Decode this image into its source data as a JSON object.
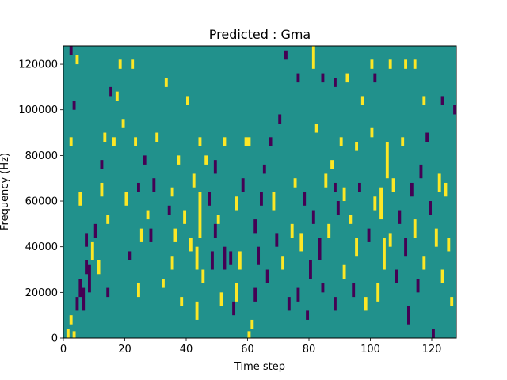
{
  "chart_data": {
    "type": "heatmap",
    "title": "Predicted : Gma",
    "xlabel": "Time step",
    "ylabel": "Frequency (Hz)",
    "xlim": [
      0,
      128
    ],
    "ylim": [
      0,
      128000
    ],
    "grid": false,
    "x_ticks": [
      0,
      20,
      40,
      60,
      80,
      100,
      120
    ],
    "x_tick_labels": [
      "0",
      "20",
      "40",
      "60",
      "80",
      "100",
      "120"
    ],
    "y_ticks": [
      0,
      20000,
      40000,
      60000,
      80000,
      100000,
      120000
    ],
    "y_tick_labels": [
      "0",
      "20000",
      "40000",
      "60000",
      "80000",
      "100000",
      "120000"
    ],
    "time_bins": 128,
    "frequency_bins": 128,
    "frequency_bin_hz": 1000,
    "colors": {
      "background": "#21918c",
      "high": "#fde725",
      "low": "#440154"
    },
    "cells": [
      {
        "t": 1,
        "f": 0,
        "h": 4000,
        "level": "high"
      },
      {
        "t": 2,
        "f": 6000,
        "h": 4000,
        "level": "high"
      },
      {
        "t": 3,
        "f": 0,
        "h": 3000,
        "level": "high"
      },
      {
        "t": 4,
        "f": 12000,
        "h": 6000,
        "level": "low"
      },
      {
        "t": 5,
        "f": 18000,
        "h": 8000,
        "level": "low"
      },
      {
        "t": 6,
        "f": 12000,
        "h": 10000,
        "level": "low"
      },
      {
        "t": 7,
        "f": 28000,
        "h": 6000,
        "level": "low"
      },
      {
        "t": 8,
        "f": 20000,
        "h": 12000,
        "level": "low"
      },
      {
        "t": 2,
        "f": 124000,
        "h": 4000,
        "level": "low"
      },
      {
        "t": 4,
        "f": 120000,
        "h": 4000,
        "level": "high"
      },
      {
        "t": 2,
        "f": 84000,
        "h": 4000,
        "level": "high"
      },
      {
        "t": 3,
        "f": 100000,
        "h": 4000,
        "level": "low"
      },
      {
        "t": 5,
        "f": 58000,
        "h": 6000,
        "level": "high"
      },
      {
        "t": 7,
        "f": 40000,
        "h": 6000,
        "level": "low"
      },
      {
        "t": 9,
        "f": 34000,
        "h": 8000,
        "level": "high"
      },
      {
        "t": 10,
        "f": 44000,
        "h": 6000,
        "level": "low"
      },
      {
        "t": 11,
        "f": 28000,
        "h": 6000,
        "level": "high"
      },
      {
        "t": 12,
        "f": 62000,
        "h": 6000,
        "level": "high"
      },
      {
        "t": 12,
        "f": 74000,
        "h": 4000,
        "level": "low"
      },
      {
        "t": 13,
        "f": 86000,
        "h": 4000,
        "level": "high"
      },
      {
        "t": 14,
        "f": 18000,
        "h": 4000,
        "level": "low"
      },
      {
        "t": 14,
        "f": 50000,
        "h": 4000,
        "level": "high"
      },
      {
        "t": 15,
        "f": 106000,
        "h": 4000,
        "level": "low"
      },
      {
        "t": 16,
        "f": 84000,
        "h": 4000,
        "level": "high"
      },
      {
        "t": 17,
        "f": 104000,
        "h": 4000,
        "level": "high"
      },
      {
        "t": 18,
        "f": 118000,
        "h": 4000,
        "level": "high"
      },
      {
        "t": 19,
        "f": 92000,
        "h": 4000,
        "level": "high"
      },
      {
        "t": 20,
        "f": 58000,
        "h": 6000,
        "level": "high"
      },
      {
        "t": 21,
        "f": 34000,
        "h": 4000,
        "level": "low"
      },
      {
        "t": 22,
        "f": 118000,
        "h": 4000,
        "level": "high"
      },
      {
        "t": 23,
        "f": 84000,
        "h": 4000,
        "level": "high"
      },
      {
        "t": 24,
        "f": 64000,
        "h": 4000,
        "level": "low"
      },
      {
        "t": 25,
        "f": 42000,
        "h": 6000,
        "level": "high"
      },
      {
        "t": 26,
        "f": 76000,
        "h": 4000,
        "level": "low"
      },
      {
        "t": 27,
        "f": 52000,
        "h": 4000,
        "level": "high"
      },
      {
        "t": 29,
        "f": 64000,
        "h": 6000,
        "level": "low"
      },
      {
        "t": 30,
        "f": 86000,
        "h": 4000,
        "level": "high"
      },
      {
        "t": 32,
        "f": 22000,
        "h": 4000,
        "level": "high"
      },
      {
        "t": 33,
        "f": 110000,
        "h": 4000,
        "level": "high"
      },
      {
        "t": 34,
        "f": 54000,
        "h": 4000,
        "level": "low"
      },
      {
        "t": 35,
        "f": 30000,
        "h": 6000,
        "level": "high"
      },
      {
        "t": 35,
        "f": 62000,
        "h": 4000,
        "level": "high"
      },
      {
        "t": 36,
        "f": 42000,
        "h": 6000,
        "level": "high"
      },
      {
        "t": 37,
        "f": 76000,
        "h": 4000,
        "level": "high"
      },
      {
        "t": 38,
        "f": 14000,
        "h": 4000,
        "level": "high"
      },
      {
        "t": 39,
        "f": 50000,
        "h": 6000,
        "level": "high"
      },
      {
        "t": 40,
        "f": 102000,
        "h": 4000,
        "level": "high"
      },
      {
        "t": 41,
        "f": 38000,
        "h": 6000,
        "level": "high"
      },
      {
        "t": 42,
        "f": 66000,
        "h": 6000,
        "level": "high"
      },
      {
        "t": 43,
        "f": 8000,
        "h": 8000,
        "level": "high"
      },
      {
        "t": 43,
        "f": 30000,
        "h": 10000,
        "level": "high"
      },
      {
        "t": 44,
        "f": 44000,
        "h": 20000,
        "level": "high"
      },
      {
        "t": 44,
        "f": 84000,
        "h": 4000,
        "level": "high"
      },
      {
        "t": 45,
        "f": 24000,
        "h": 6000,
        "level": "high"
      },
      {
        "t": 46,
        "f": 76000,
        "h": 4000,
        "level": "high"
      },
      {
        "t": 47,
        "f": 58000,
        "h": 6000,
        "level": "low"
      },
      {
        "t": 48,
        "f": 30000,
        "h": 8000,
        "level": "low"
      },
      {
        "t": 49,
        "f": 72000,
        "h": 6000,
        "level": "low"
      },
      {
        "t": 50,
        "f": 50000,
        "h": 4000,
        "level": "high"
      },
      {
        "t": 51,
        "f": 14000,
        "h": 6000,
        "level": "high"
      },
      {
        "t": 52,
        "f": 84000,
        "h": 4000,
        "level": "high"
      },
      {
        "t": 54,
        "f": 32000,
        "h": 6000,
        "level": "low"
      },
      {
        "t": 55,
        "f": 10000,
        "h": 6000,
        "level": "low"
      },
      {
        "t": 56,
        "f": 16000,
        "h": 8000,
        "level": "high"
      },
      {
        "t": 57,
        "f": 30000,
        "h": 8000,
        "level": "high"
      },
      {
        "t": 58,
        "f": 64000,
        "h": 6000,
        "level": "low"
      },
      {
        "t": 59,
        "f": 84000,
        "h": 4000,
        "level": "high"
      },
      {
        "t": 60,
        "f": 0,
        "h": 0,
        "level": "high"
      },
      {
        "t": 61,
        "f": 4000,
        "h": 4000,
        "level": "high"
      },
      {
        "t": 62,
        "f": 46000,
        "h": 6000,
        "level": "low"
      },
      {
        "t": 63,
        "f": 32000,
        "h": 8000,
        "level": "low"
      },
      {
        "t": 64,
        "f": 58000,
        "h": 6000,
        "level": "low"
      },
      {
        "t": 65,
        "f": 72000,
        "h": 4000,
        "level": "low"
      },
      {
        "t": 66,
        "f": 24000,
        "h": 6000,
        "level": "low"
      },
      {
        "t": 67,
        "f": 84000,
        "h": 4000,
        "level": "low"
      },
      {
        "t": 68,
        "f": 56000,
        "h": 8000,
        "level": "high"
      },
      {
        "t": 69,
        "f": 40000,
        "h": 6000,
        "level": "low"
      },
      {
        "t": 70,
        "f": 94000,
        "h": 4000,
        "level": "low"
      },
      {
        "t": 71,
        "f": 30000,
        "h": 6000,
        "level": "high"
      },
      {
        "t": 72,
        "f": 122000,
        "h": 4000,
        "level": "low"
      },
      {
        "t": 73,
        "f": 12000,
        "h": 6000,
        "level": "low"
      },
      {
        "t": 74,
        "f": 44000,
        "h": 6000,
        "level": "high"
      },
      {
        "t": 75,
        "f": 66000,
        "h": 4000,
        "level": "high"
      },
      {
        "t": 76,
        "f": 16000,
        "h": 6000,
        "level": "low"
      },
      {
        "t": 77,
        "f": 38000,
        "h": 8000,
        "level": "high"
      },
      {
        "t": 78,
        "f": 58000,
        "h": 6000,
        "level": "low"
      },
      {
        "t": 79,
        "f": 8000,
        "h": 4000,
        "level": "low"
      },
      {
        "t": 80,
        "f": 26000,
        "h": 8000,
        "level": "low"
      },
      {
        "t": 81,
        "f": 50000,
        "h": 6000,
        "level": "low"
      },
      {
        "t": 82,
        "f": 90000,
        "h": 4000,
        "level": "high"
      },
      {
        "t": 83,
        "f": 34000,
        "h": 10000,
        "level": "low"
      },
      {
        "t": 84,
        "f": 20000,
        "h": 4000,
        "level": "low"
      },
      {
        "t": 85,
        "f": 66000,
        "h": 6000,
        "level": "high"
      },
      {
        "t": 86,
        "f": 44000,
        "h": 6000,
        "level": "high"
      },
      {
        "t": 87,
        "f": 74000,
        "h": 4000,
        "level": "high"
      },
      {
        "t": 88,
        "f": 12000,
        "h": 6000,
        "level": "low"
      },
      {
        "t": 89,
        "f": 54000,
        "h": 6000,
        "level": "low"
      },
      {
        "t": 90,
        "f": 84000,
        "h": 4000,
        "level": "high"
      },
      {
        "t": 91,
        "f": 26000,
        "h": 6000,
        "level": "high"
      },
      {
        "t": 92,
        "f": 112000,
        "h": 4000,
        "level": "high"
      },
      {
        "t": 93,
        "f": 50000,
        "h": 4000,
        "level": "high"
      },
      {
        "t": 94,
        "f": 18000,
        "h": 6000,
        "level": "low"
      },
      {
        "t": 95,
        "f": 36000,
        "h": 8000,
        "level": "high"
      },
      {
        "t": 96,
        "f": 64000,
        "h": 4000,
        "level": "low"
      },
      {
        "t": 97,
        "f": 102000,
        "h": 4000,
        "level": "high"
      },
      {
        "t": 98,
        "f": 12000,
        "h": 6000,
        "level": "high"
      },
      {
        "t": 99,
        "f": 42000,
        "h": 6000,
        "level": "low"
      },
      {
        "t": 100,
        "f": 88000,
        "h": 4000,
        "level": "high"
      },
      {
        "t": 101,
        "f": 56000,
        "h": 6000,
        "level": "high"
      },
      {
        "t": 102,
        "f": 16000,
        "h": 8000,
        "level": "high"
      },
      {
        "t": 103,
        "f": 52000,
        "h": 14000,
        "level": "high"
      },
      {
        "t": 104,
        "f": 30000,
        "h": 14000,
        "level": "high"
      },
      {
        "t": 105,
        "f": 70000,
        "h": 16000,
        "level": "high"
      },
      {
        "t": 106,
        "f": 40000,
        "h": 6000,
        "level": "high"
      },
      {
        "t": 107,
        "f": 64000,
        "h": 6000,
        "level": "high"
      },
      {
        "t": 108,
        "f": 24000,
        "h": 6000,
        "level": "low"
      },
      {
        "t": 109,
        "f": 50000,
        "h": 6000,
        "level": "low"
      },
      {
        "t": 110,
        "f": 84000,
        "h": 4000,
        "level": "high"
      },
      {
        "t": 111,
        "f": 36000,
        "h": 8000,
        "level": "low"
      },
      {
        "t": 112,
        "f": 6000,
        "h": 8000,
        "level": "low"
      },
      {
        "t": 113,
        "f": 62000,
        "h": 6000,
        "level": "low"
      },
      {
        "t": 114,
        "f": 44000,
        "h": 8000,
        "level": "high"
      },
      {
        "t": 115,
        "f": 20000,
        "h": 6000,
        "level": "low"
      },
      {
        "t": 116,
        "f": 70000,
        "h": 6000,
        "level": "low"
      },
      {
        "t": 117,
        "f": 30000,
        "h": 6000,
        "level": "high"
      },
      {
        "t": 118,
        "f": 86000,
        "h": 4000,
        "level": "low"
      },
      {
        "t": 119,
        "f": 54000,
        "h": 6000,
        "level": "low"
      },
      {
        "t": 120,
        "f": 0,
        "h": 4000,
        "level": "low"
      },
      {
        "t": 121,
        "f": 40000,
        "h": 8000,
        "level": "high"
      },
      {
        "t": 122,
        "f": 64000,
        "h": 8000,
        "level": "high"
      },
      {
        "t": 123,
        "f": 24000,
        "h": 6000,
        "level": "high"
      },
      {
        "t": 124,
        "f": 62000,
        "h": 6000,
        "level": "high"
      },
      {
        "t": 125,
        "f": 38000,
        "h": 6000,
        "level": "high"
      },
      {
        "t": 126,
        "f": 14000,
        "h": 4000,
        "level": "high"
      },
      {
        "t": 127,
        "f": 98000,
        "h": 4000,
        "level": "low"
      },
      {
        "t": 81,
        "f": 118000,
        "h": 10000,
        "level": "high"
      },
      {
        "t": 76,
        "f": 112000,
        "h": 4000,
        "level": "low"
      },
      {
        "t": 84,
        "f": 112000,
        "h": 4000,
        "level": "low"
      },
      {
        "t": 88,
        "f": 110000,
        "h": 4000,
        "level": "low"
      },
      {
        "t": 100,
        "f": 118000,
        "h": 4000,
        "level": "high"
      },
      {
        "t": 101,
        "f": 112000,
        "h": 4000,
        "level": "low"
      },
      {
        "t": 106,
        "f": 118000,
        "h": 4000,
        "level": "high"
      },
      {
        "t": 111,
        "f": 118000,
        "h": 4000,
        "level": "high"
      },
      {
        "t": 114,
        "f": 118000,
        "h": 4000,
        "level": "high"
      },
      {
        "t": 117,
        "f": 102000,
        "h": 4000,
        "level": "high"
      },
      {
        "t": 123,
        "f": 102000,
        "h": 4000,
        "level": "low"
      },
      {
        "t": 24,
        "f": 18000,
        "h": 6000,
        "level": "high"
      },
      {
        "t": 28,
        "f": 42000,
        "h": 6000,
        "level": "low"
      },
      {
        "t": 49,
        "f": 44000,
        "h": 6000,
        "level": "low"
      },
      {
        "t": 52,
        "f": 30000,
        "h": 10000,
        "level": "low"
      },
      {
        "t": 56,
        "f": 56000,
        "h": 6000,
        "level": "high"
      },
      {
        "t": 60,
        "f": 84000,
        "h": 4000,
        "level": "high"
      },
      {
        "t": 62,
        "f": 16000,
        "h": 6000,
        "level": "low"
      },
      {
        "t": 88,
        "f": 64000,
        "h": 4000,
        "level": "low"
      },
      {
        "t": 91,
        "f": 60000,
        "h": 6000,
        "level": "high"
      },
      {
        "t": 95,
        "f": 82000,
        "h": 4000,
        "level": "high"
      }
    ]
  }
}
